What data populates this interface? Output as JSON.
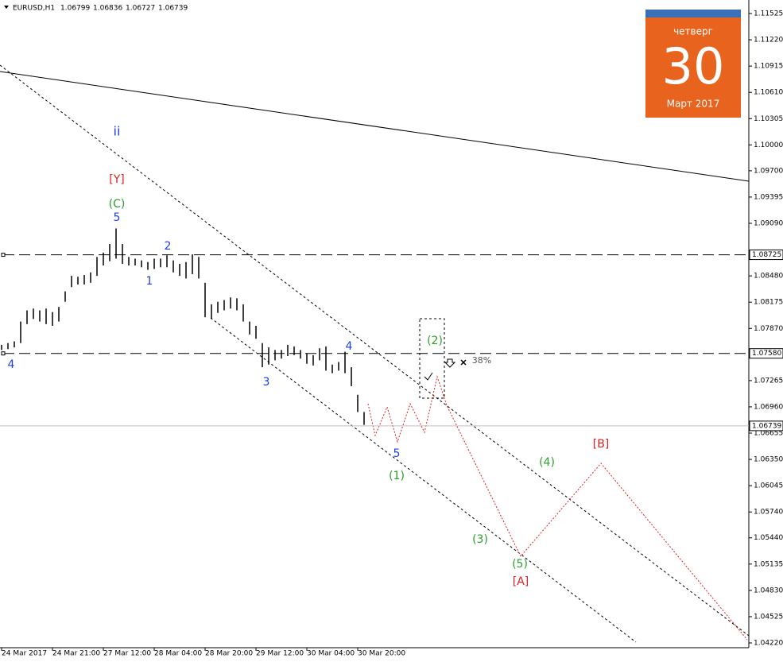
{
  "chart_data": {
    "type": "ohlc",
    "title": "EURUSD,H1",
    "header_prices": [
      1.06799,
      1.06836,
      1.06727,
      1.06739
    ],
    "high": [
      1.0768,
      1.077,
      1.0772,
      1.0795,
      1.0808,
      1.081,
      1.0808,
      1.081,
      1.0806,
      1.0812,
      1.083,
      1.0848,
      1.0847,
      1.0849,
      1.0852,
      1.087,
      1.0875,
      1.0885,
      1.0903,
      1.0885,
      1.087,
      1.0868,
      1.0866,
      1.0864,
      1.0868,
      1.0868,
      1.0872,
      1.0866,
      1.0862,
      1.0864,
      1.0873,
      1.087,
      1.084,
      1.0815,
      1.0818,
      1.082,
      1.0823,
      1.0822,
      1.0815,
      1.0795,
      1.079,
      1.077,
      1.0765,
      1.0762,
      1.0762,
      1.0768,
      1.0766,
      1.0762,
      1.0758,
      1.0756,
      1.0764,
      1.0766,
      1.0745,
      1.0748,
      1.076,
      1.0742,
      1.071,
      1.069
    ],
    "low": [
      1.0762,
      1.0763,
      1.0765,
      1.077,
      1.0792,
      1.0798,
      1.0795,
      1.0792,
      1.079,
      1.0795,
      1.0818,
      1.0835,
      1.0838,
      1.0838,
      1.084,
      1.0848,
      1.086,
      1.0865,
      1.0868,
      1.0862,
      1.086,
      1.086,
      1.0858,
      1.0855,
      1.0856,
      1.0858,
      1.0858,
      1.0852,
      1.0848,
      1.0845,
      1.085,
      1.0845,
      1.08,
      1.0798,
      1.0805,
      1.0808,
      1.081,
      1.0808,
      1.0795,
      1.078,
      1.0775,
      1.0742,
      1.0745,
      1.075,
      1.0752,
      1.0755,
      1.0756,
      1.0752,
      1.0746,
      1.0744,
      1.075,
      1.0738,
      1.0735,
      1.0738,
      1.0735,
      1.072,
      1.069,
      1.0675
    ],
    "color": "#000000",
    "ylim": [
      1.0422,
      1.11525
    ],
    "yticks": [
      {
        "value": 1.11525,
        "label": "1.11525"
      },
      {
        "value": 1.1122,
        "label": "1.11220"
      },
      {
        "value": 1.10915,
        "label": "1.10915"
      },
      {
        "value": 1.1061,
        "label": "1.10610"
      },
      {
        "value": 1.10305,
        "label": "1.10305"
      },
      {
        "value": 1.1,
        "label": "1.10000"
      },
      {
        "value": 1.097,
        "label": "1.09700"
      },
      {
        "value": 1.09395,
        "label": "1.09395"
      },
      {
        "value": 1.0909,
        "label": "1.09090"
      },
      {
        "value": 1.0848,
        "label": "1.08480"
      },
      {
        "value": 1.08175,
        "label": "1.08175"
      },
      {
        "value": 1.0787,
        "label": "1.07870"
      },
      {
        "value": 1.07265,
        "label": "1.07265"
      },
      {
        "value": 1.0696,
        "label": "1.06960"
      },
      {
        "value": 1.06655,
        "label": "1.06655"
      },
      {
        "value": 1.0635,
        "label": "1.06350"
      },
      {
        "value": 1.06045,
        "label": "1.06045"
      },
      {
        "value": 1.0574,
        "label": "1.05740"
      },
      {
        "value": 1.0544,
        "label": "1.05440"
      },
      {
        "value": 1.05135,
        "label": "1.05135"
      },
      {
        "value": 1.0483,
        "label": "1.04830"
      },
      {
        "value": 1.04525,
        "label": "1.04525"
      },
      {
        "value": 1.0422,
        "label": "1.04220"
      }
    ],
    "levels": [
      {
        "value": 1.08725,
        "label": "1.08725"
      },
      {
        "value": 1.0758,
        "label": "1.07580"
      }
    ],
    "current_price": 1.06739,
    "xtick_labels": [
      "24 Mar 2017",
      "24 Mar 21:00",
      "27 Mar 12:00",
      "28 Mar 04:00",
      "28 Mar 20:00",
      "29 Mar 12:00",
      "30 Mar 04:00",
      "30 Mar 20:00"
    ],
    "annotations": [
      {
        "text": "ii",
        "color": "#1f3fe0"
      },
      {
        "text": "[Y]",
        "color": "#e02020"
      },
      {
        "text": "(C)",
        "color": "#2e9e2e"
      },
      {
        "text": "5",
        "color": "#1f3fe0"
      },
      {
        "text": "2",
        "color": "#1f3fe0"
      },
      {
        "text": "1",
        "color": "#1f3fe0"
      },
      {
        "text": "4",
        "color": "#1f3fe0"
      },
      {
        "text": "3",
        "color": "#1f3fe0"
      },
      {
        "text": "4",
        "color": "#1f3fe0"
      },
      {
        "text": "5",
        "color": "#1f3fe0"
      },
      {
        "text": "(1)",
        "color": "#2e9e2e"
      },
      {
        "text": "(2)",
        "color": "#2e9e2e"
      },
      {
        "text": "(3)",
        "color": "#2e9e2e"
      },
      {
        "text": "(4)",
        "color": "#2e9e2e"
      },
      {
        "text": "(5)",
        "color": "#2e9e2e"
      },
      {
        "text": "[A]",
        "color": "#e02020"
      },
      {
        "text": "[B]",
        "color": "#e02020"
      },
      {
        "text": "38%",
        "color": "#555555"
      }
    ]
  },
  "calendar": {
    "weekday": "четверг",
    "day": "30",
    "month": "Март 2017"
  }
}
